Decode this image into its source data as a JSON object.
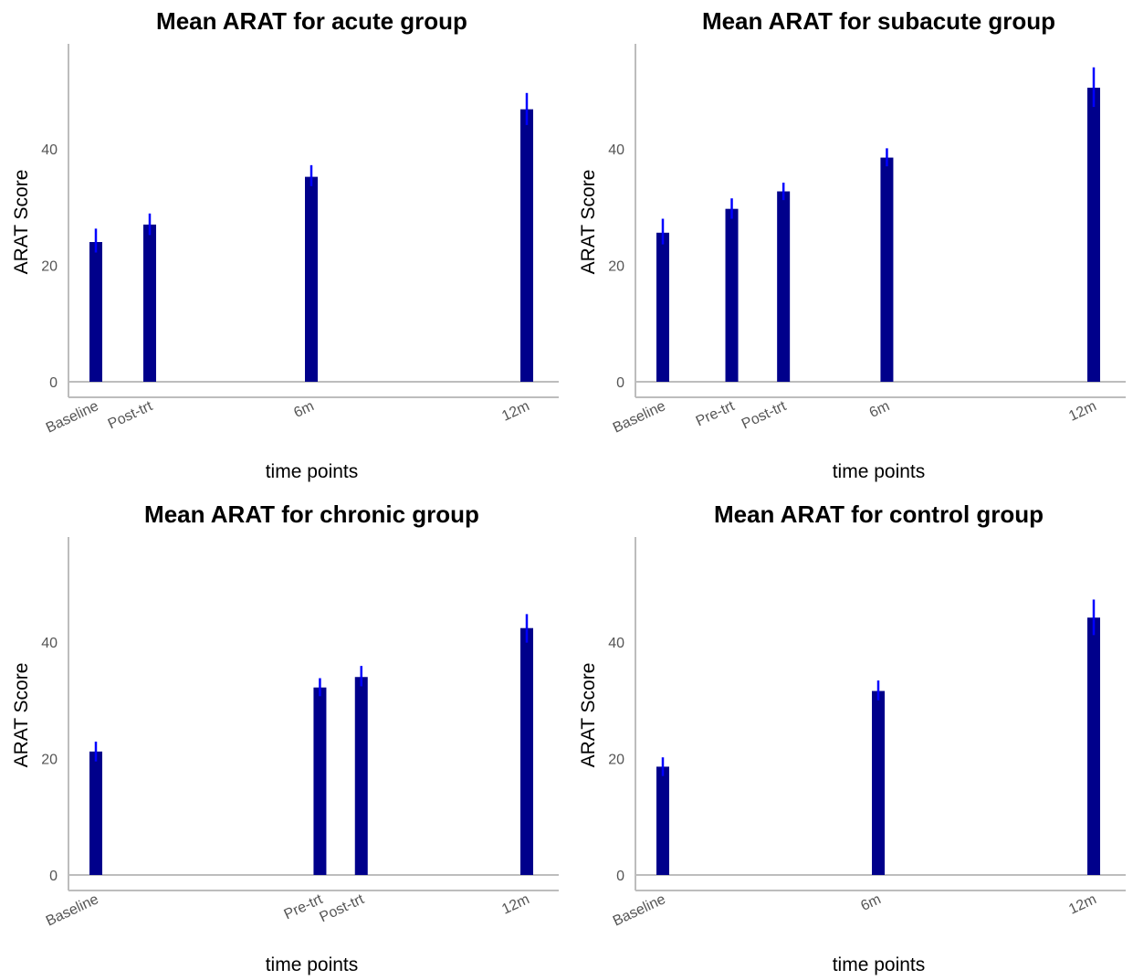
{
  "chart_data": [
    {
      "type": "bar",
      "title": "Mean ARAT for acute group",
      "xlabel": "time points",
      "ylabel": "ARAT Score",
      "x_axis": "time (months; categorical labels)",
      "categories": [
        "Baseline",
        "Post-trt",
        "6m",
        "12m"
      ],
      "x": [
        0,
        1.5,
        6,
        12
      ],
      "values": [
        24,
        27,
        35.2,
        46.8
      ],
      "error_low": [
        22.2,
        25.2,
        33.6,
        44.1
      ],
      "error_high": [
        26.3,
        28.9,
        37.2,
        49.6
      ],
      "yticks": [
        0,
        20,
        40
      ],
      "ylim": [
        0,
        58
      ],
      "grid": false,
      "bar_color": "#00008b",
      "error_color": "#0000ff"
    },
    {
      "type": "bar",
      "title": "Mean ARAT for subacute group",
      "xlabel": "time points",
      "ylabel": "ARAT Score",
      "categories": [
        "Baseline",
        "Pre-trt",
        "Post-trt",
        "6m",
        "12m"
      ],
      "x": [
        0,
        2,
        3.5,
        6.5,
        12.5
      ],
      "values": [
        25.6,
        29.7,
        32.7,
        38.5,
        50.5
      ],
      "error_low": [
        23.6,
        28,
        31.2,
        37,
        47.2
      ],
      "error_high": [
        28,
        31.5,
        34.2,
        40.1,
        54
      ],
      "yticks": [
        0,
        20,
        40
      ],
      "ylim": [
        0,
        58
      ],
      "grid": false,
      "bar_color": "#00008b",
      "error_color": "#0000ff"
    },
    {
      "type": "bar",
      "title": "Mean ARAT for chronic group",
      "xlabel": "time points",
      "ylabel": "ARAT Score",
      "categories": [
        "Baseline",
        "Pre-trt",
        "Post-trt",
        "12m"
      ],
      "x": [
        0,
        6.5,
        7.7,
        12.5
      ],
      "values": [
        21.2,
        32.2,
        34,
        42.4
      ],
      "error_low": [
        19.5,
        30.7,
        32.4,
        39.9
      ],
      "error_high": [
        22.9,
        33.8,
        35.9,
        44.8
      ],
      "yticks": [
        0,
        20,
        40
      ],
      "ylim": [
        0,
        58
      ],
      "grid": false,
      "bar_color": "#00008b",
      "error_color": "#0000ff"
    },
    {
      "type": "bar",
      "title": "Mean ARAT for control group",
      "xlabel": "time points",
      "ylabel": "ARAT Score",
      "categories": [
        "Baseline",
        "6m",
        "12m"
      ],
      "x": [
        0,
        6,
        12
      ],
      "values": [
        18.6,
        31.6,
        44.2
      ],
      "error_low": [
        17,
        30,
        41.2
      ],
      "error_high": [
        20.2,
        33.4,
        47.3
      ],
      "yticks": [
        0,
        20,
        40
      ],
      "ylim": [
        0,
        58
      ],
      "grid": false,
      "bar_color": "#00008b",
      "error_color": "#0000ff"
    }
  ]
}
